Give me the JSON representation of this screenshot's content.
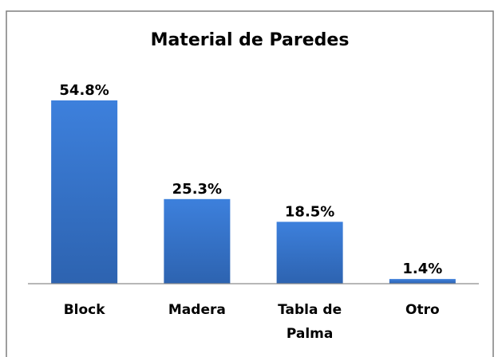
{
  "chart_data": {
    "type": "bar",
    "title": "Material de Paredes",
    "categories": [
      "Block",
      "Madera",
      "Tabla de Palma",
      "Otro"
    ],
    "values": [
      54.8,
      25.3,
      18.5,
      1.4
    ],
    "value_labels": [
      "54.8%",
      "25.3%",
      "18.5%",
      "1.4%"
    ],
    "color": "#3a78d0"
  }
}
